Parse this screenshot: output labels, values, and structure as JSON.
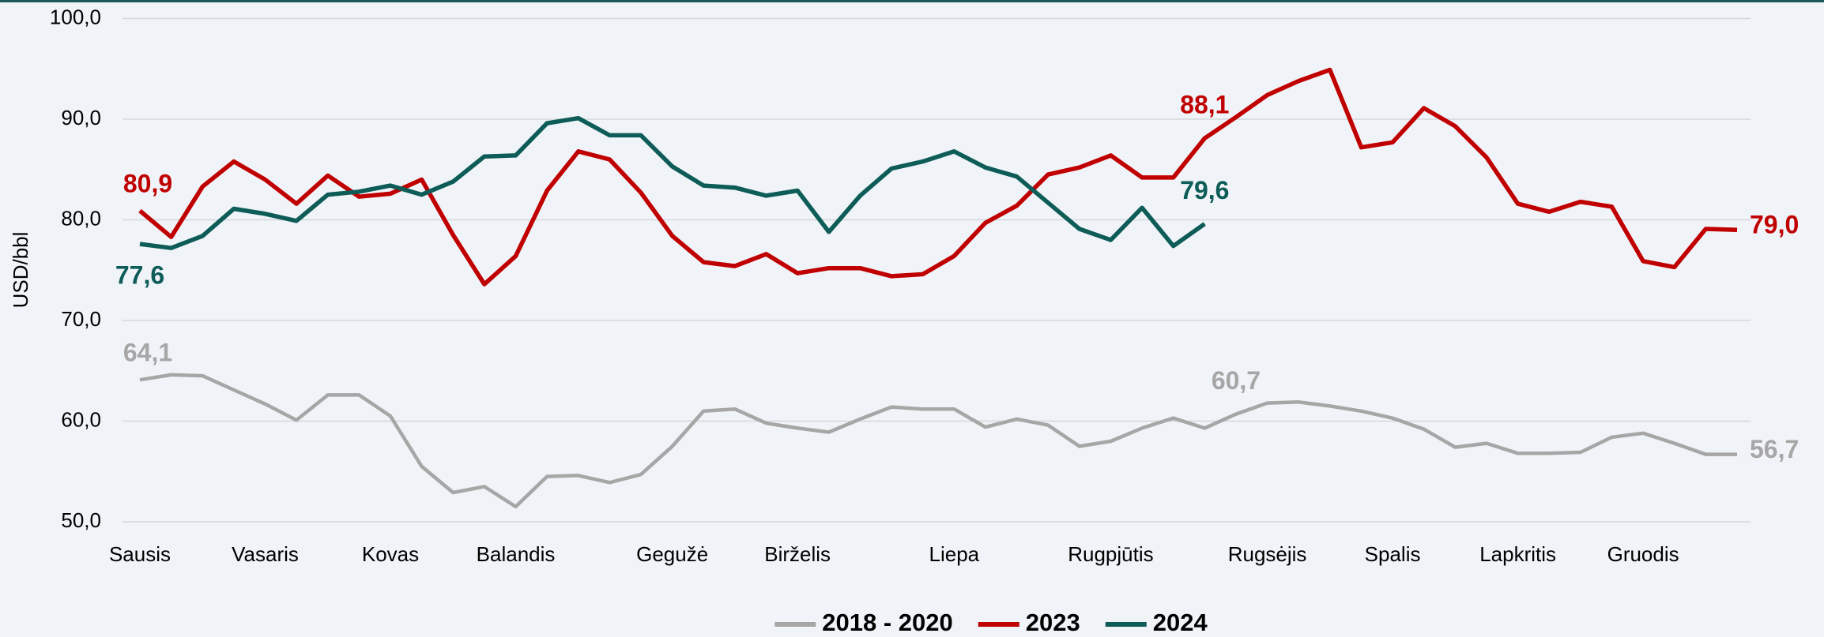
{
  "chart_data": {
    "type": "line",
    "ylabel": "USD/bbl",
    "categories": [
      "Sausis",
      null,
      null,
      null,
      "Vasaris",
      null,
      null,
      null,
      "Kovas",
      null,
      null,
      null,
      "Balandis",
      null,
      null,
      null,
      null,
      "Gegužė",
      null,
      null,
      null,
      "Birželis",
      null,
      null,
      null,
      null,
      "Liepa",
      null,
      null,
      null,
      null,
      "Rugpjūtis",
      null,
      null,
      null,
      null,
      "Rugsėjis",
      null,
      null,
      null,
      "Spalis",
      null,
      null,
      null,
      "Lapkritis",
      null,
      null,
      null,
      "Gruodis",
      null,
      null,
      null
    ],
    "ylim": [
      50,
      100
    ],
    "yticks": [
      {
        "value": 50,
        "label": "50,0"
      },
      {
        "value": 60,
        "label": "60,0"
      },
      {
        "value": 70,
        "label": "70,0"
      },
      {
        "value": 80,
        "label": "80,0"
      },
      {
        "value": 90,
        "label": "90,0"
      },
      {
        "value": 100,
        "label": "100,0"
      }
    ],
    "grid": true,
    "legend": "bottom",
    "series": [
      {
        "name": "2018 - 2020",
        "color": "#a6a6a6",
        "values": [
          64.1,
          64.6,
          64.5,
          63.1,
          61.7,
          60.1,
          62.6,
          62.6,
          60.5,
          55.5,
          52.9,
          53.5,
          51.5,
          54.5,
          54.6,
          53.9,
          54.7,
          57.5,
          61.0,
          61.2,
          59.8,
          59.3,
          58.9,
          60.2,
          61.4,
          61.2,
          61.2,
          59.4,
          60.2,
          59.6,
          57.5,
          58.0,
          59.3,
          60.3,
          59.3,
          60.7,
          61.8,
          61.9,
          61.5,
          61.0,
          60.3,
          59.2,
          57.4,
          57.8,
          56.8,
          56.8,
          56.9,
          58.4,
          58.8,
          57.8,
          56.7,
          56.7
        ],
        "value_labels": [
          "64,1",
          null,
          null,
          null,
          null,
          null,
          null,
          null,
          null,
          null,
          null,
          null,
          null,
          null,
          null,
          null,
          null,
          null,
          null,
          null,
          null,
          null,
          null,
          null,
          null,
          null,
          null,
          null,
          null,
          null,
          null,
          null,
          null,
          null,
          null,
          "60,7",
          null,
          null,
          null,
          null,
          null,
          null,
          null,
          null,
          null,
          null,
          null,
          null,
          null,
          null,
          null,
          "56,7"
        ]
      },
      {
        "name": "2023",
        "color": "#c00000",
        "values": [
          80.9,
          78.3,
          83.3,
          85.8,
          84.0,
          81.6,
          84.4,
          82.3,
          82.6,
          84.0,
          78.5,
          73.6,
          76.4,
          82.9,
          86.8,
          86.0,
          82.7,
          78.4,
          75.8,
          75.4,
          76.6,
          74.7,
          75.2,
          75.2,
          74.4,
          74.6,
          76.4,
          79.7,
          81.4,
          84.5,
          85.2,
          86.4,
          84.2,
          84.2,
          88.1,
          90.2,
          92.4,
          93.8,
          94.9,
          87.2,
          87.7,
          91.1,
          89.3,
          86.2,
          81.6,
          80.8,
          81.8,
          81.3,
          75.9,
          75.3,
          79.1,
          79.0
        ],
        "value_labels": [
          "80,9",
          null,
          null,
          null,
          null,
          null,
          null,
          null,
          null,
          null,
          null,
          null,
          null,
          null,
          null,
          null,
          null,
          null,
          null,
          null,
          null,
          null,
          null,
          null,
          null,
          null,
          null,
          null,
          null,
          null,
          null,
          null,
          null,
          null,
          "88,1",
          null,
          null,
          null,
          null,
          null,
          null,
          null,
          null,
          null,
          null,
          null,
          null,
          null,
          null,
          null,
          null,
          "79,0"
        ]
      },
      {
        "name": "2024",
        "color": "#0d5c58",
        "values": [
          77.6,
          77.2,
          78.4,
          81.1,
          80.6,
          79.9,
          82.5,
          82.8,
          83.4,
          82.5,
          83.8,
          86.3,
          86.4,
          89.6,
          90.1,
          88.4,
          88.4,
          85.3,
          83.4,
          83.2,
          82.4,
          82.9,
          78.8,
          82.4,
          85.1,
          85.8,
          86.8,
          85.2,
          84.3,
          81.7,
          79.1,
          78.0,
          81.2,
          77.4,
          79.6,
          null,
          null,
          null,
          null,
          null,
          null,
          null,
          null,
          null,
          null,
          null,
          null,
          null,
          null,
          null,
          null,
          null
        ],
        "value_labels": [
          "77,6",
          null,
          null,
          null,
          null,
          null,
          null,
          null,
          null,
          null,
          null,
          null,
          null,
          null,
          null,
          null,
          null,
          null,
          null,
          null,
          null,
          null,
          null,
          null,
          null,
          null,
          null,
          null,
          null,
          null,
          null,
          null,
          null,
          null,
          "79,6",
          null,
          null,
          null,
          null,
          null,
          null,
          null,
          null,
          null,
          null,
          null,
          null,
          null,
          null,
          null,
          null,
          null
        ]
      }
    ]
  }
}
